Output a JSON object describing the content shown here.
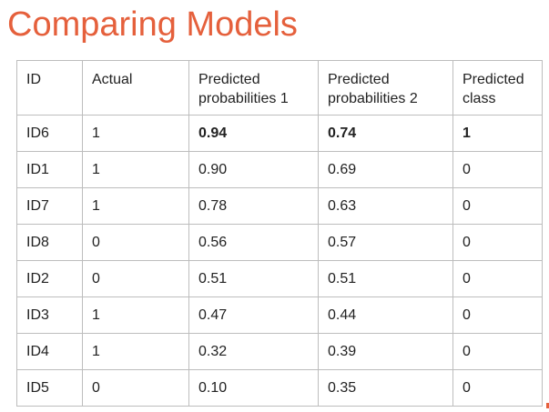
{
  "slide": {
    "title": "Comparing Models"
  },
  "table": {
    "headers": [
      "ID",
      "Actual",
      "Predicted probabilities 1",
      "Predicted probabilities 2",
      "Predicted class"
    ],
    "rows": [
      [
        "ID6",
        "1",
        "0.94",
        "0.74",
        "1"
      ],
      [
        "ID1",
        "1",
        "0.90",
        "0.69",
        "0"
      ],
      [
        "ID7",
        "1",
        "0.78",
        "0.63",
        "0"
      ],
      [
        "ID8",
        "0",
        "0.56",
        "0.57",
        "0"
      ],
      [
        "ID2",
        "0",
        "0.51",
        "0.51",
        "0"
      ],
      [
        "ID3",
        "1",
        "0.47",
        "0.44",
        "0"
      ],
      [
        "ID4",
        "1",
        "0.32",
        "0.39",
        "0"
      ],
      [
        "ID5",
        "0",
        "0.10",
        "0.35",
        "0"
      ]
    ]
  },
  "colors": {
    "title": "#e5603c",
    "border": "#bdbdbd",
    "text": "#222222"
  }
}
